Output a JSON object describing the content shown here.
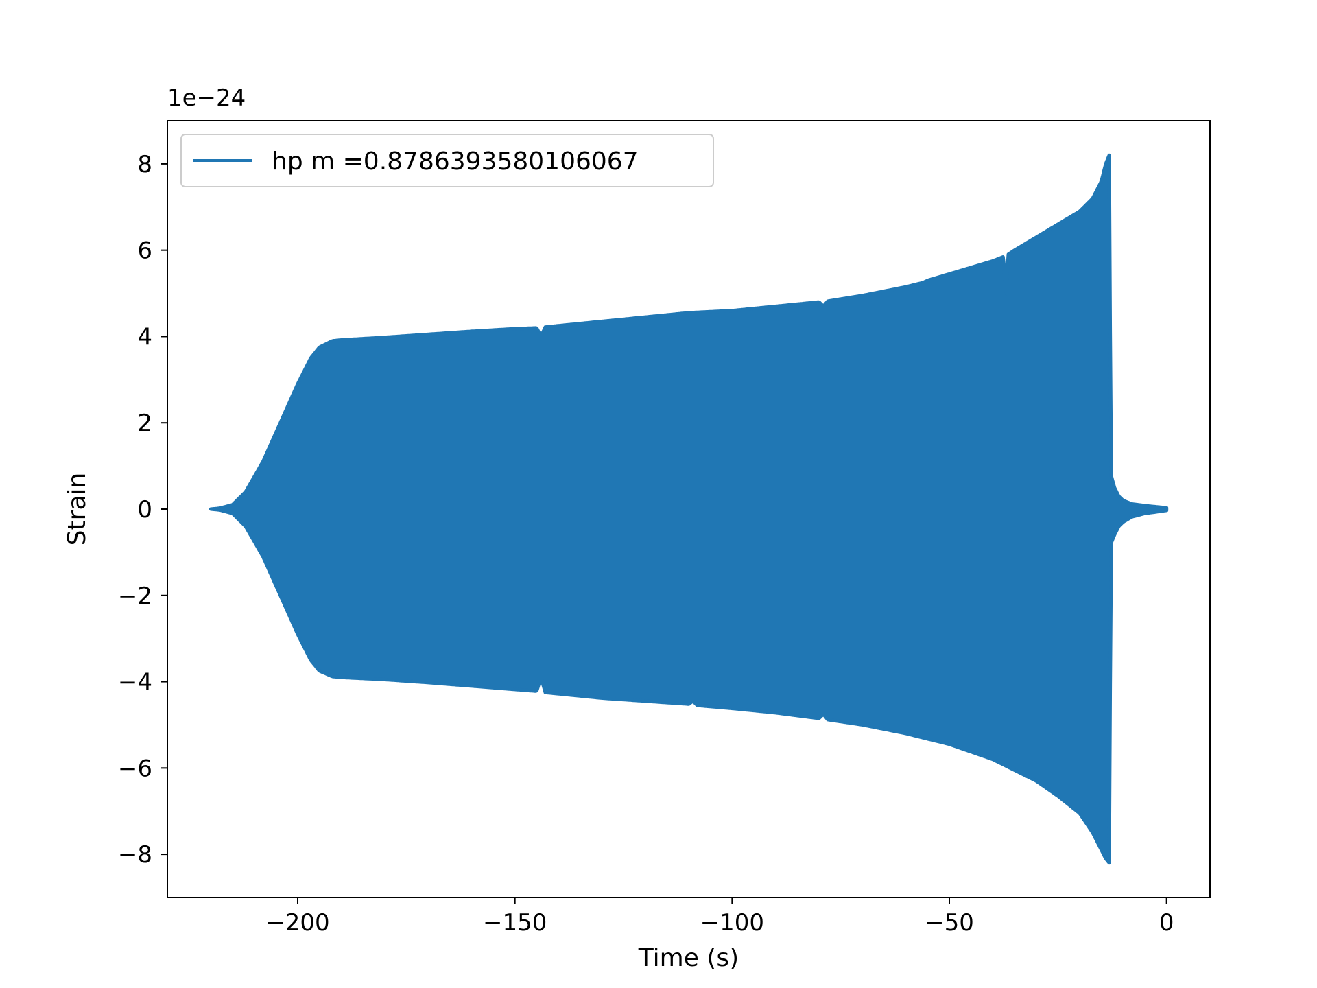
{
  "chart_data": {
    "type": "area",
    "title": "",
    "xlabel": "Time (s)",
    "ylabel": "Strain",
    "y_offset_text": "1e−24",
    "y_scale_factor": 1e-24,
    "xlim": [
      -230,
      10
    ],
    "ylim": [
      -9,
      9
    ],
    "x_ticks": [
      -200,
      -150,
      -100,
      -50,
      0
    ],
    "x_tick_labels": [
      "−200",
      "−150",
      "−100",
      "−50",
      "0"
    ],
    "y_ticks": [
      -8,
      -6,
      -4,
      -2,
      0,
      2,
      4,
      6,
      8
    ],
    "y_tick_labels": [
      "−8",
      "−6",
      "−4",
      "−2",
      "0",
      "2",
      "4",
      "6",
      "8"
    ],
    "grid": false,
    "legend": {
      "position": "top-left",
      "entries": [
        "hp m =0.8786393580106067"
      ]
    },
    "series": [
      {
        "name": "hp m =0.8786393580106067",
        "color": "#2077b4",
        "rendering": "dense oscillation filling the envelope",
        "envelope_upper": {
          "x": [
            -220,
            -218,
            -215,
            -212,
            -208,
            -204,
            -200,
            -197,
            -195,
            -192,
            -190,
            -180,
            -170,
            -160,
            -150,
            -145,
            -144,
            -143,
            -140,
            -130,
            -120,
            -110,
            -100,
            -90,
            -80,
            -79,
            -78,
            -70,
            -60,
            -56,
            -55,
            -50,
            -45,
            -40,
            -37.5,
            -37,
            -36.5,
            -35,
            -30,
            -25,
            -20,
            -17,
            -15,
            -14,
            -13.2,
            -13,
            -12.8,
            -12,
            -11,
            -10,
            -8,
            -5,
            -2,
            0
          ],
          "y": [
            0.0,
            0.02,
            0.1,
            0.4,
            1.1,
            2.0,
            2.9,
            3.5,
            3.75,
            3.9,
            3.92,
            3.98,
            4.05,
            4.12,
            4.18,
            4.2,
            4.0,
            4.22,
            4.25,
            4.35,
            4.45,
            4.55,
            4.6,
            4.7,
            4.8,
            4.7,
            4.82,
            4.95,
            5.15,
            5.25,
            5.3,
            5.45,
            5.6,
            5.75,
            5.85,
            4.8,
            5.9,
            6.0,
            6.3,
            6.6,
            6.9,
            7.2,
            7.6,
            8.0,
            8.2,
            5.0,
            0.8,
            0.5,
            0.3,
            0.2,
            0.12,
            0.08,
            0.05,
            0.03
          ]
        },
        "envelope_lower": {
          "x": [
            -220,
            -218,
            -215,
            -212,
            -208,
            -204,
            -200,
            -197,
            -195,
            -192,
            -190,
            -180,
            -170,
            -160,
            -150,
            -145,
            -144,
            -143,
            -140,
            -130,
            -120,
            -110,
            -109,
            -108,
            -100,
            -90,
            -80,
            -79,
            -78,
            -70,
            -60,
            -50,
            -40,
            -30,
            -25,
            -20,
            -17,
            -15,
            -14,
            -13.2,
            -13,
            -12.8,
            -12,
            -11,
            -10,
            -8,
            -5,
            -2,
            0
          ],
          "y": [
            0.0,
            -0.02,
            -0.1,
            -0.4,
            -1.1,
            -2.0,
            -2.9,
            -3.5,
            -3.75,
            -3.88,
            -3.9,
            -3.95,
            -4.02,
            -4.1,
            -4.18,
            -4.22,
            -3.9,
            -4.25,
            -4.28,
            -4.38,
            -4.45,
            -4.52,
            -4.45,
            -4.55,
            -4.62,
            -4.72,
            -4.85,
            -4.75,
            -4.88,
            -5.0,
            -5.2,
            -5.45,
            -5.8,
            -6.3,
            -6.65,
            -7.05,
            -7.5,
            -7.9,
            -8.1,
            -8.2,
            -5.0,
            -0.8,
            -0.6,
            -0.4,
            -0.3,
            -0.18,
            -0.1,
            -0.06,
            -0.03
          ]
        }
      }
    ]
  }
}
